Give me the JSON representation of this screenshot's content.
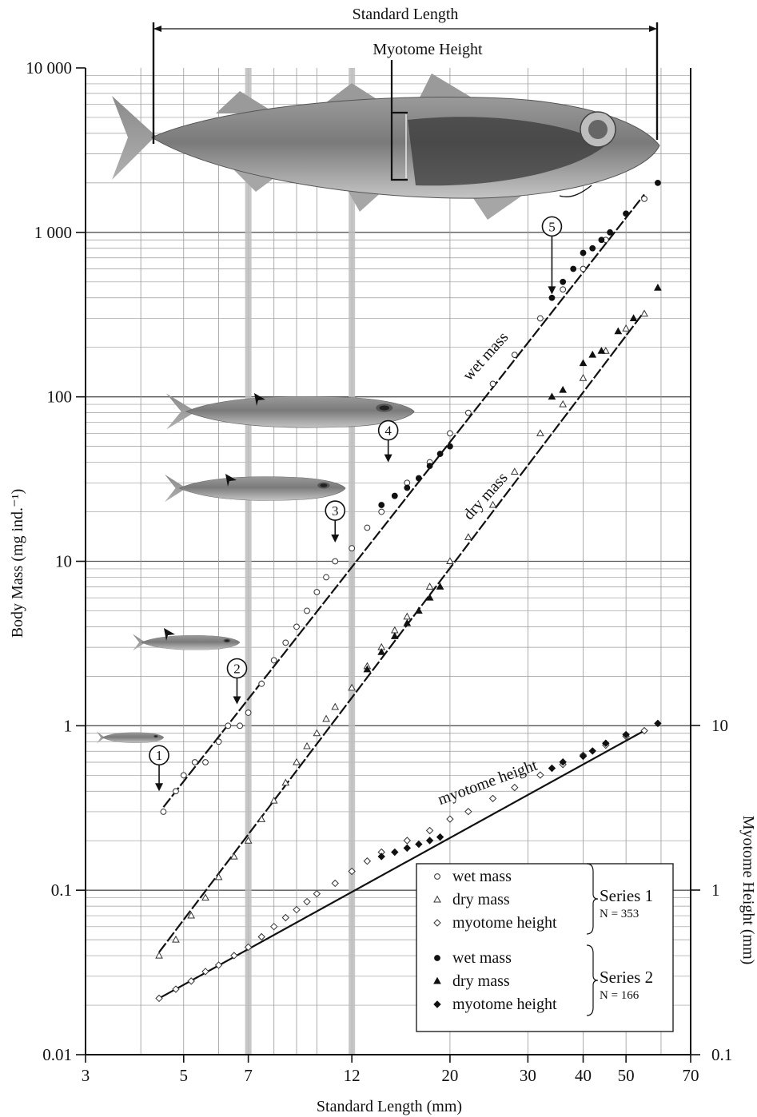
{
  "chart_data": {
    "type": "scatter",
    "top_label": "Standard Length",
    "myotome_label": "Myotome Height",
    "xlabel": "Standard Length (mm)",
    "ylabel": "Body Mass (mg ind.⁻¹)",
    "y2label": "Myotome Height (mm)",
    "x_scale": "log",
    "y_scale": "log",
    "xlim": [
      3,
      70
    ],
    "ylim": [
      0.01,
      10000
    ],
    "y2lim": [
      0.1,
      10
    ],
    "grid": true,
    "x_ticks": [
      "3",
      "5",
      "7",
      "12",
      "20",
      "30",
      "40",
      "50",
      "70"
    ],
    "x_tick_values": [
      3,
      5,
      7,
      12,
      20,
      30,
      40,
      50,
      70
    ],
    "y_ticks": [
      "0.01",
      "0.1",
      "1",
      "10",
      "100",
      "1 000",
      "10 000"
    ],
    "y_tick_values": [
      0.01,
      0.1,
      1,
      10,
      100,
      1000,
      10000
    ],
    "y2_ticks": [
      "0.1",
      "1",
      "10"
    ],
    "y2_tick_values": [
      0.1,
      1,
      10
    ],
    "highlight_x": [
      7,
      12
    ],
    "series": [
      {
        "name": "wet mass",
        "group": "Series 1",
        "marker": "circle-open",
        "axis": "left",
        "points": [
          [
            4.5,
            0.3
          ],
          [
            4.8,
            0.4
          ],
          [
            5.0,
            0.5
          ],
          [
            5.3,
            0.6
          ],
          [
            5.6,
            0.6
          ],
          [
            6.0,
            0.8
          ],
          [
            6.3,
            1.0
          ],
          [
            6.7,
            1.0
          ],
          [
            7.0,
            1.2
          ],
          [
            7.5,
            1.8
          ],
          [
            8.0,
            2.5
          ],
          [
            8.5,
            3.2
          ],
          [
            9.0,
            4.0
          ],
          [
            9.5,
            5.0
          ],
          [
            10.0,
            6.5
          ],
          [
            10.5,
            8.0
          ],
          [
            11.0,
            10.0
          ],
          [
            12.0,
            12.0
          ],
          [
            13.0,
            16.0
          ],
          [
            14.0,
            20.0
          ],
          [
            15.0,
            25.0
          ],
          [
            16.0,
            30.0
          ],
          [
            18.0,
            40.0
          ],
          [
            20.0,
            60.0
          ],
          [
            22.0,
            80.0
          ],
          [
            25.0,
            120.0
          ],
          [
            28.0,
            180.0
          ],
          [
            32.0,
            300.0
          ],
          [
            36.0,
            450.0
          ],
          [
            40.0,
            600.0
          ],
          [
            45.0,
            900.0
          ],
          [
            50.0,
            1300.0
          ],
          [
            55.0,
            1600.0
          ]
        ]
      },
      {
        "name": "dry mass",
        "group": "Series 1",
        "marker": "triangle-open",
        "axis": "left",
        "points": [
          [
            4.4,
            0.04
          ],
          [
            4.8,
            0.05
          ],
          [
            5.2,
            0.07
          ],
          [
            5.6,
            0.09
          ],
          [
            6.0,
            0.12
          ],
          [
            6.5,
            0.16
          ],
          [
            7.0,
            0.2
          ],
          [
            7.5,
            0.27
          ],
          [
            8.0,
            0.35
          ],
          [
            8.5,
            0.45
          ],
          [
            9.0,
            0.6
          ],
          [
            9.5,
            0.75
          ],
          [
            10.0,
            0.9
          ],
          [
            10.5,
            1.1
          ],
          [
            11.0,
            1.3
          ],
          [
            12.0,
            1.7
          ],
          [
            13.0,
            2.3
          ],
          [
            14.0,
            3.0
          ],
          [
            15.0,
            3.8
          ],
          [
            16.0,
            4.6
          ],
          [
            18.0,
            7.0
          ],
          [
            20.0,
            10.0
          ],
          [
            22.0,
            14.0
          ],
          [
            25.0,
            22.0
          ],
          [
            28.0,
            35.0
          ],
          [
            32.0,
            60.0
          ],
          [
            36.0,
            90.0
          ],
          [
            40.0,
            130.0
          ],
          [
            45.0,
            190.0
          ],
          [
            50.0,
            260.0
          ],
          [
            55.0,
            320.0
          ]
        ]
      },
      {
        "name": "myotome height",
        "group": "Series 1",
        "marker": "diamond-open",
        "axis": "right",
        "points": [
          [
            4.4,
            0.22
          ],
          [
            4.8,
            0.25
          ],
          [
            5.2,
            0.28
          ],
          [
            5.6,
            0.32
          ],
          [
            6.0,
            0.35
          ],
          [
            6.5,
            0.4
          ],
          [
            7.0,
            0.45
          ],
          [
            7.5,
            0.52
          ],
          [
            8.0,
            0.6
          ],
          [
            8.5,
            0.68
          ],
          [
            9.0,
            0.76
          ],
          [
            9.5,
            0.85
          ],
          [
            10.0,
            0.95
          ],
          [
            11.0,
            1.1
          ],
          [
            12.0,
            1.3
          ],
          [
            13.0,
            1.5
          ],
          [
            14.0,
            1.7
          ],
          [
            16.0,
            2.0
          ],
          [
            18.0,
            2.3
          ],
          [
            20.0,
            2.7
          ],
          [
            22.0,
            3.0
          ],
          [
            25.0,
            3.6
          ],
          [
            28.0,
            4.2
          ],
          [
            32.0,
            5.0
          ],
          [
            36.0,
            5.8
          ],
          [
            40.0,
            6.6
          ],
          [
            45.0,
            7.6
          ],
          [
            50.0,
            8.6
          ],
          [
            55.0,
            9.3
          ]
        ]
      },
      {
        "name": "wet mass",
        "group": "Series 2",
        "marker": "circle-filled",
        "axis": "left",
        "points": [
          [
            14.0,
            22.0
          ],
          [
            15.0,
            25.0
          ],
          [
            16.0,
            28.0
          ],
          [
            17.0,
            32.0
          ],
          [
            18.0,
            38.0
          ],
          [
            19.0,
            45.0
          ],
          [
            20.0,
            50.0
          ],
          [
            34.0,
            400.0
          ],
          [
            36.0,
            500.0
          ],
          [
            38.0,
            600.0
          ],
          [
            40.0,
            750.0
          ],
          [
            42.0,
            800.0
          ],
          [
            44.0,
            900.0
          ],
          [
            46.0,
            1000.0
          ],
          [
            50.0,
            1300.0
          ],
          [
            59.0,
            2000.0
          ]
        ]
      },
      {
        "name": "dry mass",
        "group": "Series 2",
        "marker": "triangle-filled",
        "axis": "left",
        "points": [
          [
            13.0,
            2.2
          ],
          [
            14.0,
            2.8
          ],
          [
            15.0,
            3.5
          ],
          [
            16.0,
            4.2
          ],
          [
            17.0,
            5.0
          ],
          [
            18.0,
            6.0
          ],
          [
            19.0,
            7.0
          ],
          [
            34.0,
            100.0
          ],
          [
            36.0,
            110.0
          ],
          [
            40.0,
            160.0
          ],
          [
            42.0,
            180.0
          ],
          [
            44.0,
            190.0
          ],
          [
            48.0,
            250.0
          ],
          [
            52.0,
            300.0
          ],
          [
            59.0,
            460.0
          ]
        ]
      },
      {
        "name": "myotome height",
        "group": "Series 2",
        "marker": "diamond-filled",
        "axis": "right",
        "points": [
          [
            14.0,
            1.6
          ],
          [
            15.0,
            1.7
          ],
          [
            16.0,
            1.8
          ],
          [
            17.0,
            1.9
          ],
          [
            18.0,
            2.0
          ],
          [
            19.0,
            2.1
          ],
          [
            34.0,
            5.5
          ],
          [
            36.0,
            6.0
          ],
          [
            40.0,
            6.5
          ],
          [
            42.0,
            7.0
          ],
          [
            45.0,
            7.8
          ],
          [
            50.0,
            8.8
          ],
          [
            59.0,
            10.3
          ]
        ]
      }
    ],
    "fit_lines": [
      {
        "name": "wet mass",
        "axis": "left",
        "from": [
          4.5,
          0.32
        ],
        "to": [
          55,
          1700
        ]
      },
      {
        "name": "dry mass",
        "axis": "left",
        "from": [
          4.4,
          0.042
        ],
        "to": [
          55,
          330
        ]
      },
      {
        "name": "myotome height",
        "axis": "right",
        "from": [
          4.4,
          0.22
        ],
        "to": [
          55,
          9.3
        ]
      }
    ],
    "curve_labels": [
      "wet mass",
      "dry mass",
      "myotome height"
    ],
    "stage_markers": [
      {
        "label": "1",
        "x": 4.4,
        "y": 0.4
      },
      {
        "label": "2",
        "x": 6.6,
        "y": 1.35
      },
      {
        "label": "3",
        "x": 11.0,
        "y": 13.0
      },
      {
        "label": "4",
        "x": 14.5,
        "y": 40.0
      },
      {
        "label": "5",
        "x": 34.0,
        "y": 420.0
      }
    ],
    "legend": {
      "placement": "bottom-right",
      "groups": [
        {
          "title": "Series 1",
          "n": "N = 353",
          "items": [
            "wet mass",
            "dry mass",
            "myotome height"
          ]
        },
        {
          "title": "Series 2",
          "n": "N = 166",
          "items": [
            "wet mass",
            "dry mass",
            "myotome height"
          ]
        }
      ]
    }
  }
}
